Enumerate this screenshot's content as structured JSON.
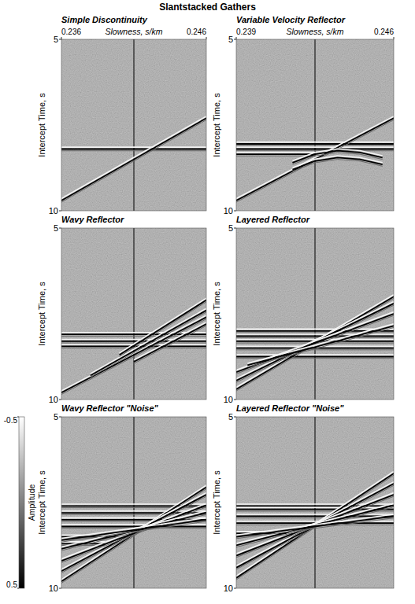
{
  "title": "Slantstacked Gathers",
  "colorbar": {
    "label": "Amplitude",
    "range": [
      -0.5,
      0.5
    ],
    "ticks": [
      -0.5,
      0.5
    ],
    "colors": [
      "#ffffff",
      "#000000"
    ]
  },
  "chart_data": [
    {
      "type": "line",
      "title": "Simple Discontinuity",
      "xlabel": "Slowness, s/km",
      "ylabel": "Intercept Time, s",
      "xlim": [
        0.236,
        0.246
      ],
      "ylim": [
        5,
        10
      ],
      "xticks": [
        0.236,
        0.246
      ],
      "yticks": [
        5,
        10
      ],
      "color": "#000000",
      "series": [
        {
          "x": [
            0.241,
            0.241
          ],
          "values": [
            5,
            10
          ],
          "line_style": "solid"
        },
        {
          "x": [
            0.236,
            0.246
          ],
          "values": [
            8.2,
            8.2
          ],
          "line_style": "wavelet"
        },
        {
          "x": [
            0.236,
            0.246
          ],
          "values": [
            9.7,
            7.3
          ],
          "line_style": "wavelet"
        }
      ]
    },
    {
      "type": "line",
      "title": "Variable Velocity Reflector",
      "xlabel": "Slowness, s/km",
      "ylabel": "Intercept Time, s",
      "xlim": [
        0.239,
        0.246
      ],
      "ylim": [
        5,
        10
      ],
      "xticks": [
        0.239,
        0.246
      ],
      "yticks": [
        5,
        10
      ],
      "color": "#000000",
      "series": [
        {
          "x": [
            0.2425,
            0.2425
          ],
          "values": [
            5,
            10
          ],
          "line_style": "solid"
        },
        {
          "x": [
            0.239,
            0.246
          ],
          "values": [
            8.05,
            8.05
          ],
          "line_style": "wavelet"
        },
        {
          "x": [
            0.239,
            0.246
          ],
          "values": [
            8.2,
            8.2
          ],
          "line_style": "wavelet"
        },
        {
          "x": [
            0.239,
            0.2425
          ],
          "values": [
            8.35,
            8.35
          ],
          "line_style": "wavelet"
        },
        {
          "x": [
            0.239,
            0.246
          ],
          "values": [
            9.7,
            7.3
          ],
          "line_style": "wavelet"
        },
        {
          "x": [
            0.2415,
            0.2425,
            0.2435,
            0.2445,
            0.2455
          ],
          "values": [
            8.6,
            8.35,
            8.25,
            8.3,
            8.45
          ],
          "line_style": "wavelet"
        },
        {
          "x": [
            0.2415,
            0.2425,
            0.2435,
            0.2445,
            0.2455
          ],
          "values": [
            8.8,
            8.55,
            8.45,
            8.5,
            8.65
          ],
          "line_style": "wavelet"
        }
      ]
    },
    {
      "type": "line",
      "title": "Wavy Reflector",
      "ylabel": "Intercept Time, s",
      "xlim": [
        0.236,
        0.246
      ],
      "ylim": [
        5,
        10
      ],
      "yticks": [
        5,
        10
      ],
      "tick_labels": "y",
      "color": "#000000",
      "series": [
        {
          "x": [
            0.241,
            0.241
          ],
          "values": [
            5,
            10
          ],
          "line_style": "solid"
        },
        {
          "x": [
            0.236,
            0.246
          ],
          "values": [
            8.1,
            8.1
          ],
          "line_style": "wavelet"
        },
        {
          "x": [
            0.236,
            0.246
          ],
          "values": [
            8.3,
            8.3
          ],
          "line_style": "wavelet"
        },
        {
          "x": [
            0.236,
            0.246
          ],
          "values": [
            8.45,
            8.45
          ],
          "line_style": "wavelet"
        },
        {
          "x": [
            0.236,
            0.246
          ],
          "values": [
            9.8,
            7.6
          ],
          "line_style": "wavelet"
        },
        {
          "x": [
            0.238,
            0.246
          ],
          "values": [
            9.3,
            7.4
          ],
          "line_style": "wavelet"
        },
        {
          "x": [
            0.24,
            0.246
          ],
          "values": [
            8.7,
            7.1
          ],
          "line_style": "wavelet"
        },
        {
          "x": [
            0.241,
            0.246
          ],
          "values": [
            8.9,
            7.8
          ],
          "line_style": "wavelet"
        }
      ]
    },
    {
      "type": "line",
      "title": "Layered Reflector",
      "ylabel": "Intercept Time, s",
      "xlim": [
        0.239,
        0.246
      ],
      "ylim": [
        5,
        10
      ],
      "yticks": [
        5,
        10
      ],
      "tick_labels": "y",
      "color": "#000000",
      "series": [
        {
          "x": [
            0.2425,
            0.2425
          ],
          "values": [
            5,
            10
          ],
          "line_style": "solid"
        },
        {
          "x": [
            0.239,
            0.246
          ],
          "values": [
            8.0,
            8.0
          ],
          "line_style": "wavelet"
        },
        {
          "x": [
            0.239,
            0.246
          ],
          "values": [
            8.15,
            8.15
          ],
          "line_style": "wavelet"
        },
        {
          "x": [
            0.239,
            0.246
          ],
          "values": [
            8.3,
            8.3
          ],
          "line_style": "wavelet"
        },
        {
          "x": [
            0.239,
            0.246
          ],
          "values": [
            8.5,
            8.5
          ],
          "line_style": "wavelet"
        },
        {
          "x": [
            0.239,
            0.246
          ],
          "values": [
            8.75,
            8.75
          ],
          "line_style": "wavelet"
        },
        {
          "x": [
            0.239,
            0.246
          ],
          "values": [
            9.7,
            7.0
          ],
          "line_style": "wavelet"
        },
        {
          "x": [
            0.239,
            0.246
          ],
          "values": [
            9.45,
            7.2
          ],
          "line_style": "wavelet"
        },
        {
          "x": [
            0.239,
            0.246
          ],
          "values": [
            9.2,
            7.5
          ],
          "line_style": "wavelet"
        },
        {
          "x": [
            0.2395,
            0.246
          ],
          "values": [
            9.0,
            7.85
          ],
          "line_style": "wavelet"
        }
      ]
    },
    {
      "type": "line",
      "title": "Wavy Reflector \"Noise\"",
      "ylabel": "Intercept Time, s",
      "xlim": [
        0.236,
        0.246
      ],
      "ylim": [
        5,
        10
      ],
      "yticks": [
        5,
        10
      ],
      "tick_labels": "y",
      "color": "#000000",
      "series": [
        {
          "x": [
            0.241,
            0.241
          ],
          "values": [
            5,
            10
          ],
          "line_style": "solid"
        },
        {
          "x": [
            0.236,
            0.246
          ],
          "values": [
            7.6,
            7.6
          ],
          "line_style": "wavelet"
        },
        {
          "x": [
            0.236,
            0.246
          ],
          "values": [
            7.8,
            7.8
          ],
          "line_style": "wavelet"
        },
        {
          "x": [
            0.236,
            0.246
          ],
          "values": [
            8.0,
            8.0
          ],
          "line_style": "wavelet"
        },
        {
          "x": [
            0.236,
            0.246
          ],
          "values": [
            8.2,
            8.2
          ],
          "line_style": "wavelet"
        },
        {
          "x": [
            0.236,
            0.24
          ],
          "values": [
            8.5,
            8.5
          ],
          "line_style": "wavelet"
        },
        {
          "x": [
            0.236,
            0.239
          ],
          "values": [
            8.7,
            8.7
          ],
          "line_style": "wavelet"
        },
        {
          "x": [
            0.236,
            0.246
          ],
          "values": [
            9.8,
            7.05
          ],
          "line_style": "wavelet"
        },
        {
          "x": [
            0.236,
            0.246
          ],
          "values": [
            9.5,
            7.27
          ],
          "line_style": "wavelet"
        },
        {
          "x": [
            0.236,
            0.246
          ],
          "values": [
            9.2,
            7.58
          ],
          "line_style": "wavelet"
        },
        {
          "x": [
            0.236,
            0.246
          ],
          "values": [
            8.85,
            7.8
          ],
          "line_style": "wavelet"
        },
        {
          "x": [
            0.236,
            0.246
          ],
          "values": [
            8.6,
            8.0
          ],
          "line_style": "wavelet"
        }
      ]
    },
    {
      "type": "line",
      "title": "Layered Reflector \"Noise\"",
      "ylabel": "Intercept Time, s",
      "xlim": [
        0.239,
        0.246
      ],
      "ylim": [
        5,
        10
      ],
      "yticks": [
        5,
        10
      ],
      "tick_labels": "y",
      "color": "#000000",
      "series": [
        {
          "x": [
            0.2425,
            0.2425
          ],
          "values": [
            5,
            10
          ],
          "line_style": "solid"
        },
        {
          "x": [
            0.239,
            0.246
          ],
          "values": [
            7.6,
            7.6
          ],
          "line_style": "wavelet"
        },
        {
          "x": [
            0.239,
            0.246
          ],
          "values": [
            7.7,
            7.7
          ],
          "line_style": "wavelet"
        },
        {
          "x": [
            0.239,
            0.246
          ],
          "values": [
            7.9,
            7.9
          ],
          "line_style": "wavelet"
        },
        {
          "x": [
            0.239,
            0.246
          ],
          "values": [
            8.1,
            8.1
          ],
          "line_style": "wavelet"
        },
        {
          "x": [
            0.239,
            0.2415
          ],
          "values": [
            8.4,
            8.4
          ],
          "line_style": "wavelet"
        },
        {
          "x": [
            0.239,
            0.246
          ],
          "values": [
            9.7,
            6.65
          ],
          "line_style": "wavelet"
        },
        {
          "x": [
            0.239,
            0.246
          ],
          "values": [
            9.4,
            6.95
          ],
          "line_style": "wavelet"
        },
        {
          "x": [
            0.239,
            0.246
          ],
          "values": [
            9.05,
            7.27
          ],
          "line_style": "wavelet"
        },
        {
          "x": [
            0.239,
            0.246
          ],
          "values": [
            8.75,
            7.58
          ],
          "line_style": "wavelet"
        },
        {
          "x": [
            0.239,
            0.246
          ],
          "values": [
            8.5,
            7.9
          ],
          "line_style": "wavelet"
        }
      ]
    }
  ]
}
